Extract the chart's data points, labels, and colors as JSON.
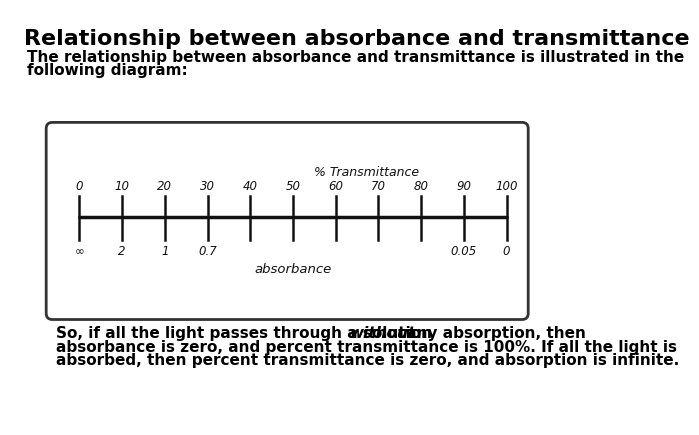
{
  "title": "Relationship between absorbance and transmittance",
  "subtitle_line1": "The relationship between absorbance and transmittance is illustrated in the",
  "subtitle_line2": "following diagram:",
  "bottom_line1a": "So, if all the light passes through a solution ",
  "bottom_line1b": "without",
  "bottom_line1c": " any absorption, then",
  "bottom_line2": "absorbance is zero, and percent transmittance is 100%. If all the light is",
  "bottom_line3": "absorbed, then percent transmittance is zero, and absorption is infinite.",
  "bg_color": "#ffffff",
  "title_color": "#000000",
  "text_color": "#000000",
  "title_fontsize": 16,
  "subtitle_fontsize": 11,
  "body_fontsize": 11
}
